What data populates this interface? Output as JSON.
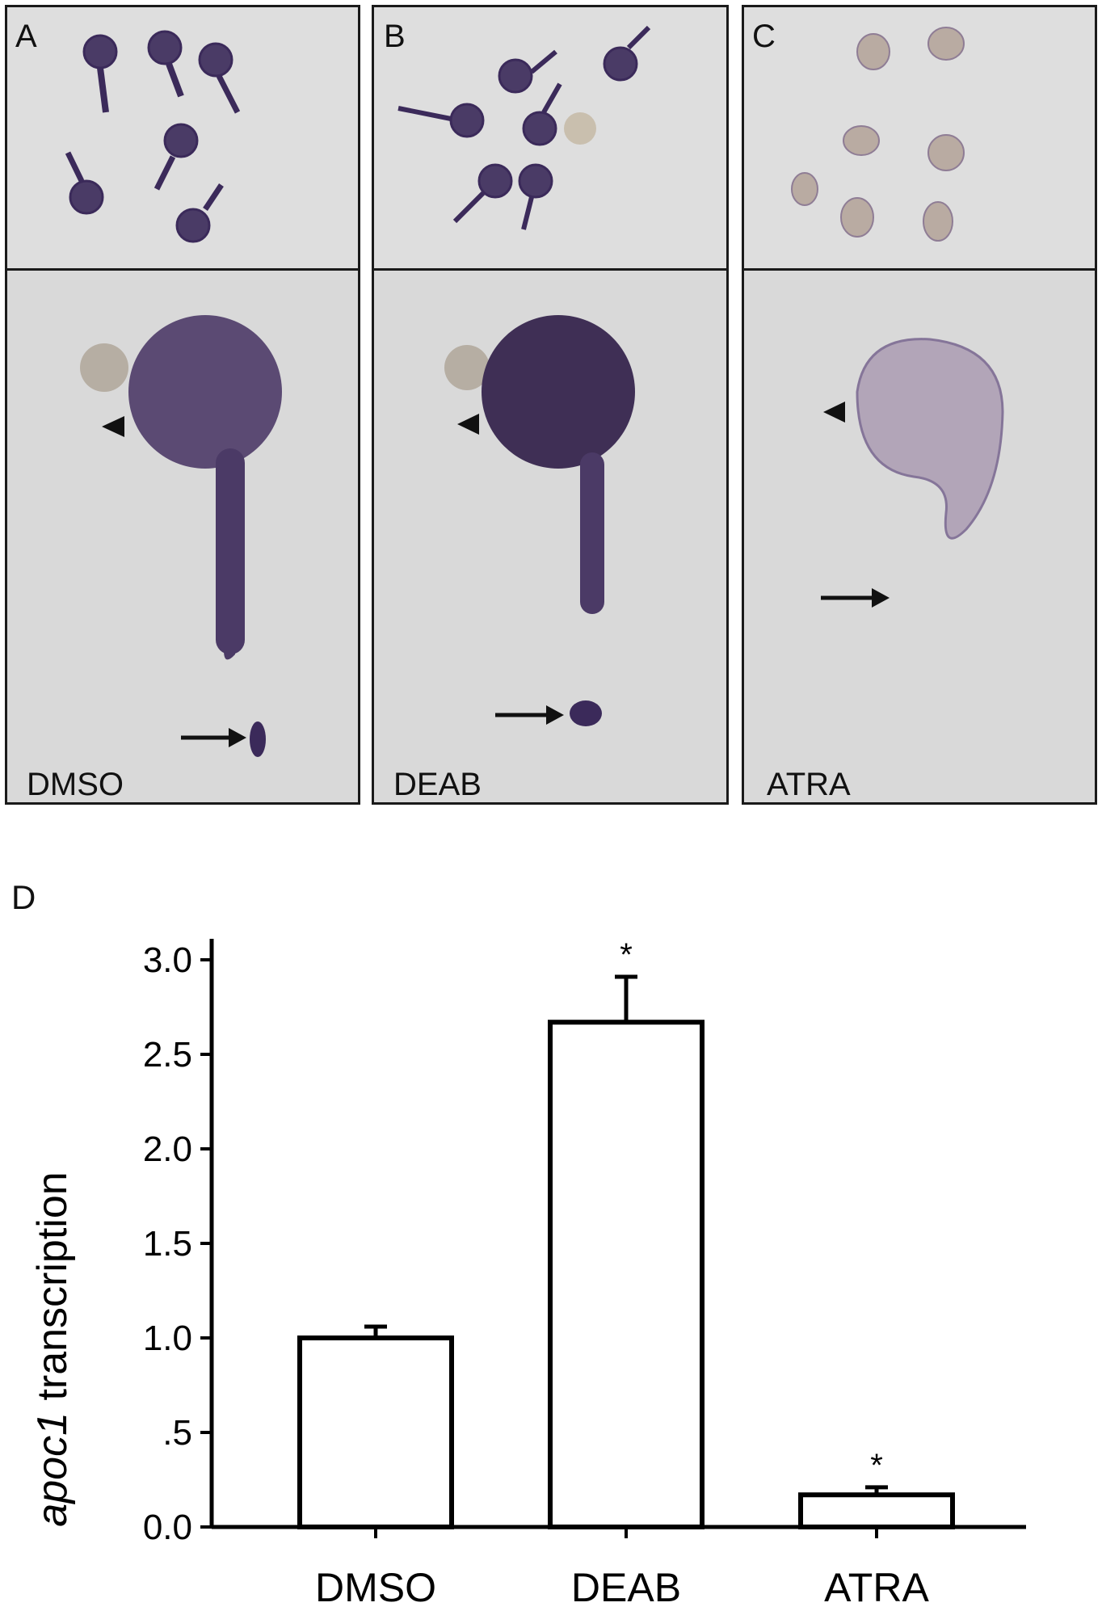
{
  "figure": {
    "panels": [
      {
        "letter": "A",
        "condition": "DMSO"
      },
      {
        "letter": "B",
        "condition": "DEAB"
      },
      {
        "letter": "C",
        "condition": "ATRA"
      }
    ],
    "chart_letter": "D",
    "ylabel_italic": "apoc1",
    "ylabel_rest": " transcription",
    "colors": {
      "stain": "#3b2a5a",
      "background": "#dcdcdc",
      "bar_fill": "#ffffff",
      "axis": "#000000"
    }
  },
  "chart_data": {
    "type": "bar",
    "categories": [
      "DMSO",
      "DEAB",
      "ATRA"
    ],
    "values": [
      1.0,
      2.67,
      0.17
    ],
    "error": [
      0.06,
      0.24,
      0.04
    ],
    "significance": [
      "",
      "*",
      "*"
    ],
    "ylabel": "apoc1 transcription",
    "ylim": [
      0,
      3.3
    ],
    "yticks": [
      0,
      0.5,
      1.0,
      1.5,
      2.0,
      2.5,
      3.0
    ],
    "ytick_labels": [
      "0.0",
      ".5",
      "1.0",
      "1.5",
      "2.0",
      "2.5",
      "3.0"
    ]
  }
}
